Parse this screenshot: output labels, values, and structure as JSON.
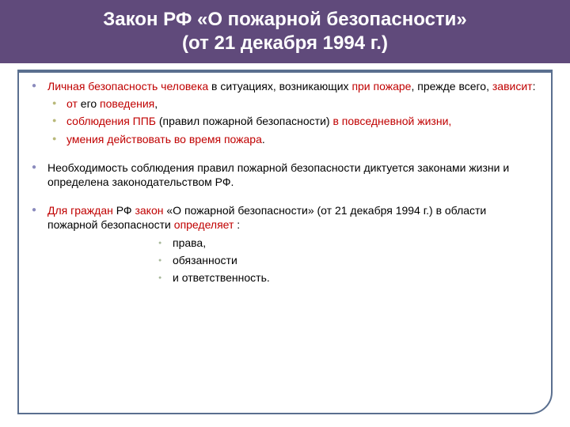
{
  "colors": {
    "title_bg": "#604a7b",
    "title_text": "#ffffff",
    "frame_border": "#5a6f8f",
    "bullet_l1": "#8b8bbd",
    "bullet_l2": "#b9b97a",
    "bullet_l3": "#a8b89a",
    "red_text": "#c00000",
    "black_text": "#000000",
    "background": "#ffffff"
  },
  "title_line1": "Закон РФ «О пожарной безопасности»",
  "title_line2": "(от 21 декабря 1994 г.)",
  "p1": {
    "s1": "Личная безопасность человека",
    "s2": " в ситуациях, возникающих ",
    "s3": "при пожаре",
    "s4": ", прежде всего, ",
    "s5": "зависит",
    "s6": ":"
  },
  "p1sub": {
    "a1": "от",
    "a2": " его ",
    "a3": "поведения",
    "a4": ",",
    "b1": "соблюдения ППБ",
    "b2": " (правил пожарной безопасности) ",
    "b3": "в повседневной жизни,",
    "c1": "умения действовать во время пожара",
    "c2": "."
  },
  "p2": "Необходимость соблюдения правил пожарной безопасности диктуется законами жизни и определена законодательством РФ.",
  "p3": {
    "s1": "Для граждан",
    "s2": " РФ ",
    "s3": "закон",
    "s4": " «О пожарной безопасности» (от 21 декабря 1994 г.) в области пожарной безопасности ",
    "s5": "определяет",
    "s6": " :"
  },
  "p3sub": {
    "a": "права,",
    "b": "обязанности",
    "c": "и ответственность."
  }
}
